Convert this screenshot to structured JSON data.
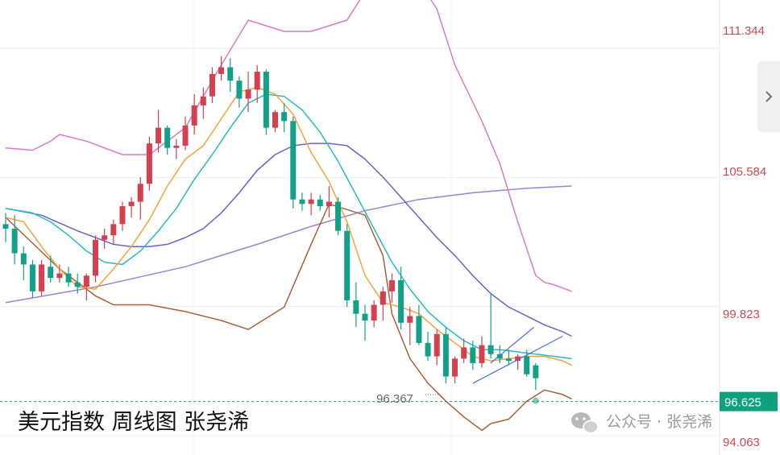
{
  "chart_data": {
    "type": "candlestick",
    "title": "美元指数 周线图 张尧浠",
    "price_axis": {
      "ticks": [
        "111.344",
        "105.584",
        "99.823",
        "94.063"
      ],
      "range": [
        93.2,
        113.5
      ]
    },
    "current_price": "96.625",
    "low_annotation": "96.367",
    "candles": [
      [
        103.5,
        104.0,
        102.7,
        103.3
      ],
      [
        103.3,
        103.9,
        101.7,
        102.2
      ],
      [
        102.2,
        102.5,
        101.0,
        101.7
      ],
      [
        101.7,
        101.9,
        100.2,
        100.5
      ],
      [
        100.5,
        101.9,
        100.3,
        101.7
      ],
      [
        101.6,
        102.1,
        100.9,
        101.1
      ],
      [
        101.1,
        101.7,
        100.9,
        101.3
      ],
      [
        101.3,
        101.6,
        100.7,
        100.9
      ],
      [
        100.9,
        101.3,
        100.4,
        100.7
      ],
      [
        100.7,
        101.3,
        100.1,
        101.2
      ],
      [
        101.2,
        103.0,
        100.9,
        102.8
      ],
      [
        102.8,
        103.3,
        102.4,
        103.0
      ],
      [
        103.0,
        103.7,
        102.6,
        103.5
      ],
      [
        103.5,
        104.5,
        103.2,
        104.3
      ],
      [
        104.3,
        104.7,
        103.8,
        104.5
      ],
      [
        104.5,
        105.6,
        103.7,
        105.3
      ],
      [
        105.3,
        107.4,
        105.0,
        107.1
      ],
      [
        107.1,
        108.6,
        106.7,
        107.8
      ],
      [
        107.8,
        107.9,
        106.6,
        106.9
      ],
      [
        106.9,
        107.3,
        106.4,
        107.0
      ],
      [
        107.0,
        108.3,
        106.8,
        107.9
      ],
      [
        107.9,
        109.3,
        107.5,
        108.8
      ],
      [
        108.8,
        109.6,
        108.2,
        109.2
      ],
      [
        109.2,
        110.5,
        108.9,
        110.2
      ],
      [
        110.2,
        111.0,
        109.9,
        110.5
      ],
      [
        110.5,
        110.9,
        109.4,
        109.9
      ],
      [
        109.9,
        110.1,
        108.7,
        109.1
      ],
      [
        109.1,
        110.3,
        108.5,
        109.5
      ],
      [
        109.5,
        110.6,
        108.9,
        110.3
      ],
      [
        110.3,
        110.4,
        107.5,
        107.8
      ],
      [
        107.8,
        108.6,
        107.6,
        108.5
      ],
      [
        108.5,
        108.9,
        107.6,
        108.1
      ],
      [
        108.1,
        108.3,
        104.2,
        104.6
      ],
      [
        104.6,
        104.9,
        104.1,
        104.4
      ],
      [
        104.4,
        104.9,
        103.9,
        104.6
      ],
      [
        104.6,
        104.8,
        104.1,
        104.3
      ],
      [
        104.3,
        105.2,
        103.8,
        104.5
      ],
      [
        104.5,
        104.7,
        103.0,
        103.2
      ],
      [
        103.2,
        103.5,
        99.8,
        100.1
      ],
      [
        100.1,
        100.9,
        98.9,
        99.5
      ],
      [
        99.5,
        99.9,
        98.3,
        99.2
      ],
      [
        99.2,
        100.1,
        98.9,
        99.9
      ],
      [
        99.9,
        100.7,
        99.2,
        100.5
      ],
      [
        100.5,
        101.3,
        100.0,
        101.0
      ],
      [
        101.0,
        101.6,
        98.8,
        99.1
      ],
      [
        99.1,
        99.8,
        98.1,
        99.4
      ],
      [
        99.4,
        99.9,
        98.1,
        98.2
      ],
      [
        98.2,
        98.7,
        97.4,
        97.6
      ],
      [
        97.6,
        98.8,
        97.2,
        98.6
      ],
      [
        98.6,
        98.9,
        96.4,
        96.7
      ],
      [
        96.7,
        97.6,
        96.4,
        97.5
      ],
      [
        97.5,
        98.4,
        97.3,
        98.0
      ],
      [
        98.0,
        98.3,
        97.0,
        97.3
      ],
      [
        97.3,
        98.5,
        97.1,
        98.1
      ],
      [
        98.1,
        100.4,
        97.5,
        97.7
      ],
      [
        97.7,
        98.1,
        97.3,
        97.5
      ],
      [
        97.5,
        97.9,
        97.2,
        97.4
      ],
      [
        97.4,
        97.7,
        97.0,
        97.6
      ],
      [
        97.6,
        97.9,
        96.7,
        96.8
      ],
      [
        97.2,
        97.3,
        96.1,
        96.625
      ]
    ],
    "indicators": {
      "bollinger_upper": [
        [
          0,
          106.9
        ],
        [
          3,
          106.8
        ],
        [
          5,
          107.2
        ],
        [
          6,
          107.5
        ],
        [
          9,
          107.2
        ],
        [
          13,
          106.6
        ],
        [
          16,
          106.6
        ],
        [
          20,
          107.8
        ],
        [
          24,
          110.6
        ],
        [
          27,
          112.6
        ],
        [
          31,
          112.1
        ],
        [
          34,
          112.1
        ],
        [
          38,
          112.6
        ],
        [
          41,
          114.5
        ],
        [
          44,
          114.3
        ],
        [
          46,
          114.3
        ],
        [
          48,
          113.1
        ],
        [
          50,
          110.6
        ],
        [
          53,
          108.1
        ],
        [
          55,
          106.2
        ],
        [
          57,
          103.6
        ],
        [
          59,
          101.2
        ],
        [
          60,
          100.9
        ],
        [
          61,
          100.8
        ],
        [
          63,
          100.5
        ]
      ],
      "bollinger_lower": [
        [
          0,
          103.8
        ],
        [
          6,
          101.5
        ],
        [
          10,
          100.3
        ],
        [
          12,
          99.9
        ],
        [
          16,
          99.9
        ],
        [
          20,
          99.6
        ],
        [
          24,
          99.2
        ],
        [
          27,
          98.8
        ],
        [
          31,
          99.8
        ],
        [
          34,
          102.6
        ],
        [
          36,
          104.4
        ],
        [
          40,
          103.9
        ],
        [
          42,
          102.1
        ],
        [
          43,
          99.5
        ],
        [
          45,
          97.5
        ],
        [
          47,
          96.4
        ],
        [
          49,
          95.6
        ],
        [
          51,
          94.9
        ],
        [
          53,
          94.3
        ],
        [
          54,
          94.6
        ],
        [
          56,
          94.8
        ],
        [
          58,
          95.6
        ],
        [
          60,
          96.1
        ],
        [
          62,
          95.9
        ],
        [
          63,
          95.7
        ]
      ],
      "ma_fast": [
        [
          0,
          103.8
        ],
        [
          2,
          103.6
        ],
        [
          4,
          102.5
        ],
        [
          6,
          101.5
        ],
        [
          8,
          100.7
        ],
        [
          10,
          100.6
        ],
        [
          12,
          101.5
        ],
        [
          14,
          102.5
        ],
        [
          16,
          103.7
        ],
        [
          18,
          105.2
        ],
        [
          20,
          106.4
        ],
        [
          22,
          107.0
        ],
        [
          24,
          108.2
        ],
        [
          26,
          109.4
        ],
        [
          28,
          109.6
        ],
        [
          30,
          109.3
        ],
        [
          32,
          108.4
        ],
        [
          34,
          106.7
        ],
        [
          36,
          105.4
        ],
        [
          38,
          103.6
        ],
        [
          40,
          101.2
        ],
        [
          42,
          100.0
        ],
        [
          44,
          99.8
        ],
        [
          46,
          99.5
        ],
        [
          48,
          98.8
        ],
        [
          50,
          98.2
        ],
        [
          52,
          97.6
        ],
        [
          54,
          97.4
        ],
        [
          56,
          97.5
        ],
        [
          58,
          97.6
        ],
        [
          60,
          97.6
        ],
        [
          62,
          97.4
        ],
        [
          63,
          97.2
        ]
      ],
      "ma_mid": [
        [
          0,
          104.2
        ],
        [
          3,
          104.0
        ],
        [
          5,
          103.6
        ],
        [
          7,
          103.0
        ],
        [
          9,
          102.3
        ],
        [
          11,
          101.8
        ],
        [
          13,
          101.7
        ],
        [
          15,
          102.3
        ],
        [
          17,
          103.2
        ],
        [
          19,
          104.2
        ],
        [
          21,
          105.5
        ],
        [
          23,
          106.6
        ],
        [
          25,
          107.8
        ],
        [
          27,
          108.9
        ],
        [
          29,
          109.3
        ],
        [
          31,
          109.2
        ],
        [
          33,
          108.6
        ],
        [
          35,
          107.6
        ],
        [
          37,
          106.3
        ],
        [
          39,
          104.8
        ],
        [
          41,
          103.3
        ],
        [
          43,
          101.8
        ],
        [
          45,
          100.6
        ],
        [
          47,
          99.6
        ],
        [
          49,
          98.9
        ],
        [
          51,
          98.3
        ],
        [
          53,
          97.9
        ],
        [
          55,
          97.9
        ],
        [
          57,
          97.8
        ],
        [
          59,
          97.7
        ],
        [
          61,
          97.6
        ],
        [
          63,
          97.5
        ]
      ],
      "ma_slow": [
        [
          0,
          104.2
        ],
        [
          4,
          103.9
        ],
        [
          8,
          103.2
        ],
        [
          10,
          102.9
        ],
        [
          12,
          102.6
        ],
        [
          14,
          102.5
        ],
        [
          16,
          102.5
        ],
        [
          18,
          102.6
        ],
        [
          20,
          102.9
        ],
        [
          22,
          103.3
        ],
        [
          24,
          104.0
        ],
        [
          26,
          104.9
        ],
        [
          28,
          105.9
        ],
        [
          30,
          106.6
        ],
        [
          32,
          107.0
        ],
        [
          34,
          107.1
        ],
        [
          36,
          107.1
        ],
        [
          38,
          107.0
        ],
        [
          40,
          106.4
        ],
        [
          42,
          105.6
        ],
        [
          44,
          104.7
        ],
        [
          46,
          103.8
        ],
        [
          48,
          102.9
        ],
        [
          50,
          102.1
        ],
        [
          52,
          101.2
        ],
        [
          54,
          100.4
        ],
        [
          56,
          99.8
        ],
        [
          58,
          99.4
        ],
        [
          60,
          99.0
        ],
        [
          62,
          98.7
        ],
        [
          63,
          98.5
        ]
      ],
      "ma_long": [
        [
          0,
          100.0
        ],
        [
          10,
          100.7
        ],
        [
          20,
          101.6
        ],
        [
          28,
          102.6
        ],
        [
          34,
          103.4
        ],
        [
          40,
          104.1
        ],
        [
          46,
          104.6
        ],
        [
          52,
          104.9
        ],
        [
          58,
          105.1
        ],
        [
          63,
          105.2
        ]
      ]
    },
    "triangle": [
      [
        52,
        96.4
      ],
      [
        62,
        98.5
      ],
      [
        57,
        98.9
      ]
    ],
    "colors": {
      "up": "#d4404f",
      "down": "#13a089",
      "bollinger": "#d67ac9",
      "bollinger_lower": "#a6623a",
      "ma_fast": "#f2a43a",
      "ma_mid": "#24bcc4",
      "ma_slow": "#6a62c8",
      "ma_long": "#9b84cf",
      "axis_text": "#c84a55",
      "current": "#0fa07e",
      "grid": "#eeeeee"
    }
  },
  "watermark": {
    "caption": "美元指数 周线图 张尧浠",
    "wechat": "公众号 · 张尧浠"
  },
  "nav": {
    "icon": "chevron-right-icon"
  }
}
